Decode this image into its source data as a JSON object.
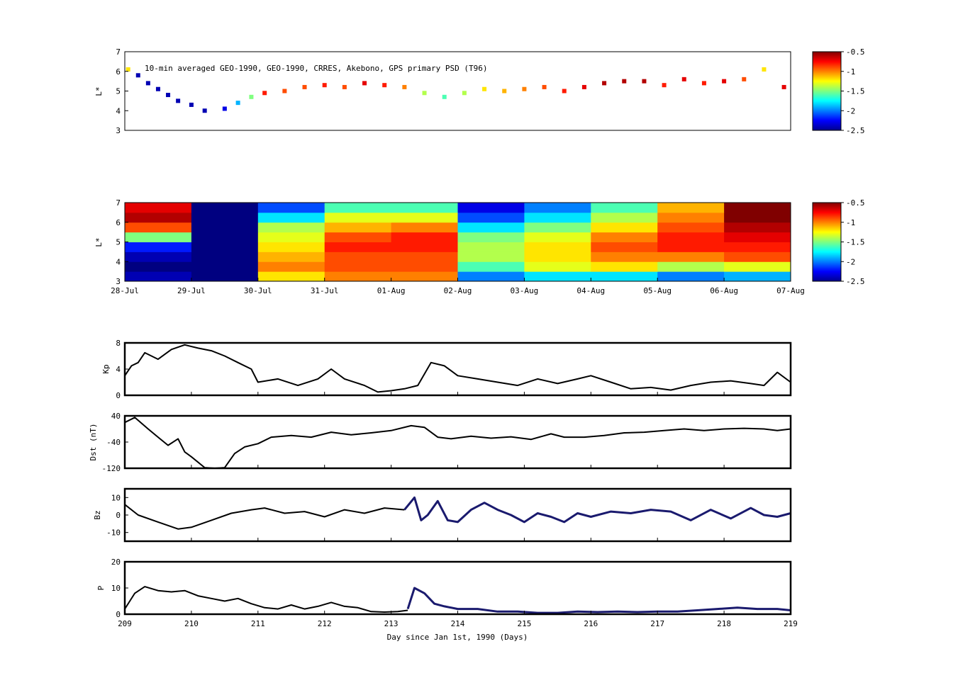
{
  "figure": {
    "annotation": "10-min averaged GEO-1990, GEO-1990, CRRES, Akebono, GPS  primary PSD (T96)",
    "xlabel": "Day since Jan 1st, 1990 (Days)"
  },
  "chart_data": [
    {
      "type": "scatter",
      "panel": "observed-psd",
      "ylabel": "L*",
      "ylim": [
        3,
        7
      ],
      "yticks": [
        "3",
        "4",
        "5",
        "6",
        "7"
      ],
      "xlim": [
        209,
        219
      ],
      "color_scale": "jet",
      "colorbar": {
        "range": [
          -2.5,
          -0.5
        ],
        "ticks": [
          "-0.5",
          "-1",
          "-1.5",
          "-2",
          "-2.5"
        ]
      },
      "points": [
        {
          "x": 209.05,
          "y": 6.1,
          "v": -1.2
        },
        {
          "x": 209.2,
          "y": 5.8,
          "v": -2.4
        },
        {
          "x": 209.35,
          "y": 5.4,
          "v": -2.4
        },
        {
          "x": 209.5,
          "y": 5.1,
          "v": -2.4
        },
        {
          "x": 209.65,
          "y": 4.8,
          "v": -2.4
        },
        {
          "x": 209.8,
          "y": 4.5,
          "v": -2.4
        },
        {
          "x": 210.0,
          "y": 4.3,
          "v": -2.4
        },
        {
          "x": 210.2,
          "y": 4.0,
          "v": -2.4
        },
        {
          "x": 210.5,
          "y": 4.1,
          "v": -2.3
        },
        {
          "x": 210.7,
          "y": 4.4,
          "v": -1.9
        },
        {
          "x": 210.9,
          "y": 4.7,
          "v": -1.5
        },
        {
          "x": 211.1,
          "y": 4.9,
          "v": -0.8
        },
        {
          "x": 211.4,
          "y": 5.0,
          "v": -0.9
        },
        {
          "x": 211.7,
          "y": 5.2,
          "v": -0.9
        },
        {
          "x": 212.0,
          "y": 5.3,
          "v": -0.8
        },
        {
          "x": 212.3,
          "y": 5.2,
          "v": -0.9
        },
        {
          "x": 212.6,
          "y": 5.4,
          "v": -0.7
        },
        {
          "x": 212.9,
          "y": 5.3,
          "v": -0.8
        },
        {
          "x": 213.2,
          "y": 5.2,
          "v": -1.0
        },
        {
          "x": 213.5,
          "y": 4.9,
          "v": -1.4
        },
        {
          "x": 213.8,
          "y": 4.7,
          "v": -1.6
        },
        {
          "x": 214.1,
          "y": 4.9,
          "v": -1.4
        },
        {
          "x": 214.4,
          "y": 5.1,
          "v": -1.2
        },
        {
          "x": 214.7,
          "y": 5.0,
          "v": -1.1
        },
        {
          "x": 215.0,
          "y": 5.1,
          "v": -1.0
        },
        {
          "x": 215.3,
          "y": 5.2,
          "v": -0.9
        },
        {
          "x": 215.6,
          "y": 5.0,
          "v": -0.8
        },
        {
          "x": 215.9,
          "y": 5.2,
          "v": -0.7
        },
        {
          "x": 216.2,
          "y": 5.4,
          "v": -0.6
        },
        {
          "x": 216.5,
          "y": 5.5,
          "v": -0.6
        },
        {
          "x": 216.8,
          "y": 5.5,
          "v": -0.6
        },
        {
          "x": 217.1,
          "y": 5.3,
          "v": -0.8
        },
        {
          "x": 217.4,
          "y": 5.6,
          "v": -0.7
        },
        {
          "x": 217.7,
          "y": 5.4,
          "v": -0.8
        },
        {
          "x": 218.0,
          "y": 5.5,
          "v": -0.7
        },
        {
          "x": 218.3,
          "y": 5.6,
          "v": -0.9
        },
        {
          "x": 218.6,
          "y": 6.1,
          "v": -1.2
        },
        {
          "x": 218.9,
          "y": 5.2,
          "v": -0.7
        }
      ]
    },
    {
      "type": "heatmap",
      "panel": "reanalysis-psd",
      "ylabel": "L*",
      "ylim": [
        3,
        7
      ],
      "yticks": [
        "3",
        "4",
        "5",
        "6",
        "7"
      ],
      "xticks": [
        "28-Jul",
        "29-Jul",
        "30-Jul",
        "31-Jul",
        "01-Aug",
        "02-Aug",
        "03-Aug",
        "04-Aug",
        "05-Aug",
        "06-Aug",
        "07-Aug"
      ],
      "color_scale": "jet",
      "colorbar": {
        "range": [
          -2.5,
          -0.5
        ],
        "ticks": [
          "-0.5",
          "-1",
          "-1.5",
          "-2",
          "-2.5"
        ]
      },
      "l_rows": [
        3.25,
        3.75,
        4.25,
        4.75,
        5.25,
        5.75,
        6.25,
        6.75
      ],
      "days": [
        "28-Jul",
        "29-Jul",
        "30-Jul",
        "31-Jul",
        "01-Aug",
        "02-Aug",
        "03-Aug",
        "04-Aug",
        "05-Aug",
        "06-Aug"
      ],
      "values": [
        [
          -2.4,
          -2.5,
          -1.2,
          -1.0,
          -1.0,
          -2.0,
          -1.8,
          -1.8,
          -2.0,
          -1.9
        ],
        [
          -2.5,
          -2.5,
          -1.0,
          -0.9,
          -0.9,
          -1.6,
          -1.3,
          -1.2,
          -1.4,
          -1.3
        ],
        [
          -2.4,
          -2.5,
          -1.1,
          -0.9,
          -0.9,
          -1.4,
          -1.2,
          -1.0,
          -1.0,
          -0.9
        ],
        [
          -2.2,
          -2.5,
          -1.2,
          -0.8,
          -0.8,
          -1.4,
          -1.2,
          -0.9,
          -0.8,
          -0.8
        ],
        [
          -1.5,
          -2.5,
          -1.3,
          -0.9,
          -0.8,
          -1.5,
          -1.3,
          -1.0,
          -0.8,
          -0.7
        ],
        [
          -0.9,
          -2.5,
          -1.4,
          -1.1,
          -1.0,
          -1.8,
          -1.5,
          -1.2,
          -0.9,
          -0.6
        ],
        [
          -0.6,
          -2.5,
          -1.8,
          -1.3,
          -1.3,
          -2.1,
          -1.8,
          -1.4,
          -1.0,
          -0.5
        ],
        [
          -0.7,
          -2.5,
          -2.1,
          -1.6,
          -1.6,
          -2.3,
          -2.0,
          -1.6,
          -1.1,
          -0.5
        ]
      ]
    },
    {
      "type": "line",
      "panel": "kp",
      "ylabel": "Kp",
      "ylim": [
        0,
        8
      ],
      "yticks": [
        "0",
        "4",
        "8"
      ],
      "xlim": [
        209,
        219
      ],
      "series": [
        {
          "color": "#000000",
          "x": [
            209,
            209.1,
            209.2,
            209.3,
            209.5,
            209.7,
            209.9,
            210.1,
            210.3,
            210.5,
            210.7,
            210.9,
            211.0,
            211.3,
            211.6,
            211.9,
            212.1,
            212.3,
            212.6,
            212.8,
            213.0,
            213.2,
            213.4,
            213.6,
            213.8,
            214.0,
            214.3,
            214.6,
            214.9,
            215.2,
            215.5,
            215.8,
            216.0,
            216.3,
            216.6,
            216.9,
            217.2,
            217.5,
            217.8,
            218.1,
            218.4,
            218.6,
            218.8,
            219.0
          ],
          "y": [
            3,
            4.5,
            5,
            6.5,
            5.5,
            7,
            7.7,
            7.2,
            6.8,
            6,
            5,
            4,
            2,
            2.5,
            1.5,
            2.5,
            4,
            2.5,
            1.5,
            0.5,
            0.7,
            1,
            1.5,
            5,
            4.5,
            3,
            2.5,
            2,
            1.5,
            2.5,
            1.8,
            2.5,
            3,
            2,
            1,
            1.2,
            0.8,
            1.5,
            2,
            2.2,
            1.8,
            1.5,
            3.5,
            2
          ]
        }
      ]
    },
    {
      "type": "line",
      "panel": "dst",
      "ylabel": "Dst (nT)",
      "ylim": [
        -120,
        40
      ],
      "yticks": [
        "-120",
        "-40",
        "40"
      ],
      "xlim": [
        209,
        219
      ],
      "series": [
        {
          "color": "#000000",
          "x": [
            209,
            209.15,
            209.35,
            209.5,
            209.65,
            209.8,
            209.9,
            210.0,
            210.2,
            210.35,
            210.5,
            210.65,
            210.8,
            211.0,
            211.2,
            211.5,
            211.8,
            212.1,
            212.4,
            212.7,
            213.0,
            213.3,
            213.5,
            213.7,
            213.9,
            214.2,
            214.5,
            214.8,
            215.1,
            215.4,
            215.6,
            215.9,
            216.2,
            216.5,
            216.8,
            217.1,
            217.4,
            217.7,
            218.0,
            218.3,
            218.6,
            218.8,
            219.0
          ],
          "y": [
            20,
            35,
            0,
            -25,
            -50,
            -30,
            -70,
            -85,
            -118,
            -120,
            -118,
            -75,
            -55,
            -45,
            -25,
            -20,
            -25,
            -10,
            -18,
            -12,
            -5,
            10,
            5,
            -25,
            -30,
            -22,
            -28,
            -24,
            -32,
            -15,
            -25,
            -25,
            -20,
            -12,
            -10,
            -5,
            0,
            -5,
            0,
            2,
            0,
            -5,
            0
          ]
        }
      ]
    },
    {
      "type": "line",
      "panel": "bz",
      "ylabel": "Bz",
      "ylim": [
        -15,
        15
      ],
      "yticks": [
        "-10",
        "0",
        "10"
      ],
      "xlim": [
        209,
        219
      ],
      "series": [
        {
          "color": "#000000",
          "x": [
            209,
            209.2,
            209.5,
            209.8,
            210.0,
            210.3,
            210.6,
            210.9,
            211.1,
            211.4,
            211.7,
            212.0,
            212.3,
            212.6,
            212.9,
            213.2
          ],
          "y": [
            6,
            0,
            -4,
            -8,
            -7,
            -3,
            1,
            3,
            4,
            1,
            2,
            -1,
            3,
            1,
            4,
            3
          ]
        },
        {
          "color": "#1a1a6e",
          "x": [
            213.2,
            213.35,
            213.45,
            213.55,
            213.7,
            213.85,
            214.0,
            214.2,
            214.4,
            214.6,
            214.8,
            215.0,
            215.2,
            215.4,
            215.6,
            215.8,
            216.0,
            216.3,
            216.6,
            216.9,
            217.2,
            217.5,
            217.8,
            218.1,
            218.4,
            218.6,
            218.8,
            219.0
          ],
          "y": [
            3,
            10,
            -3,
            0,
            8,
            -3,
            -4,
            3,
            7,
            3,
            0,
            -4,
            1,
            -1,
            -4,
            1,
            -1,
            2,
            1,
            3,
            2,
            -3,
            3,
            -2,
            4,
            0,
            -1,
            1
          ]
        }
      ]
    },
    {
      "type": "line",
      "panel": "p",
      "ylabel": "P",
      "ylim": [
        0,
        20
      ],
      "yticks": [
        "0",
        "10",
        "20"
      ],
      "xlim": [
        209,
        219
      ],
      "xticks": [
        "209",
        "210",
        "211",
        "212",
        "213",
        "214",
        "215",
        "216",
        "217",
        "218",
        "219"
      ],
      "series": [
        {
          "color": "#000000",
          "x": [
            209,
            209.15,
            209.3,
            209.5,
            209.7,
            209.9,
            210.1,
            210.3,
            210.5,
            210.7,
            210.9,
            211.1,
            211.3,
            211.5,
            211.7,
            211.9,
            212.1,
            212.3,
            212.5,
            212.7,
            212.9,
            213.1,
            213.25
          ],
          "y": [
            2,
            8,
            10.5,
            9,
            8.5,
            9,
            7,
            6,
            5,
            6,
            4,
            2.5,
            2,
            3.5,
            2,
            3,
            4.5,
            3,
            2.5,
            1,
            0.8,
            1,
            1.5
          ]
        },
        {
          "color": "#1a1a6e",
          "x": [
            213.25,
            213.35,
            213.5,
            213.65,
            213.8,
            214.0,
            214.3,
            214.6,
            214.9,
            215.2,
            215.5,
            215.8,
            216.1,
            216.4,
            216.7,
            217.0,
            217.3,
            217.6,
            217.9,
            218.2,
            218.5,
            218.8,
            219.0
          ],
          "y": [
            2,
            10,
            8,
            4,
            3,
            2,
            2,
            1,
            1,
            0.5,
            0.5,
            1,
            0.8,
            1,
            0.8,
            1,
            1,
            1.5,
            2,
            2.5,
            2,
            2,
            1.5
          ]
        }
      ]
    }
  ]
}
